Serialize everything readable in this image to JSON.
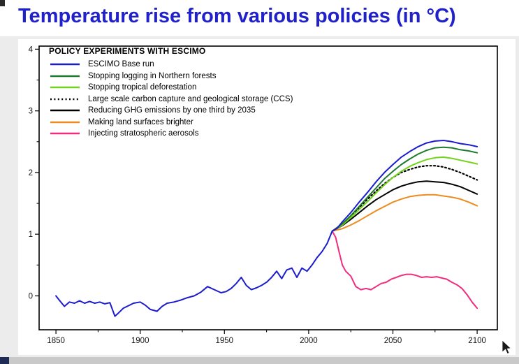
{
  "page": {
    "title": "Temperature rise from various policies (in °C)",
    "title_color": "#2121cc"
  },
  "chart_data": {
    "type": "line",
    "legend_title": "POLICY EXPERIMENTS WITH ESCIMO",
    "xlabel": "",
    "ylabel": "",
    "xlim": [
      1840,
      2112
    ],
    "ylim": [
      -0.55,
      4.05
    ],
    "xticks": [
      1850,
      1900,
      1950,
      2000,
      2050,
      2100
    ],
    "xminor": [
      1875,
      1925,
      1975,
      2025,
      2075
    ],
    "yticks": [
      0,
      1,
      2,
      3,
      4
    ],
    "yminor": [
      0.5,
      1.5,
      2.5,
      3.5
    ],
    "grid": false,
    "legend_position": "top-left-inside",
    "series": [
      {
        "name": "ESCIMO Base run",
        "color": "#1c1ccf",
        "dash": false,
        "width": 2,
        "x": [
          1850,
          1852,
          1855,
          1858,
          1861,
          1864,
          1867,
          1870,
          1873,
          1876,
          1879,
          1882,
          1885,
          1887,
          1890,
          1893,
          1896,
          1900,
          1903,
          1906,
          1910,
          1913,
          1916,
          1920,
          1924,
          1928,
          1932,
          1936,
          1940,
          1944,
          1948,
          1951,
          1954,
          1957,
          1960,
          1963,
          1966,
          1969,
          1972,
          1975,
          1978,
          1981,
          1984,
          1987,
          1990,
          1993,
          1996,
          1999,
          2002,
          2005,
          2008,
          2011,
          2014,
          2017,
          2020,
          2025,
          2030,
          2035,
          2040,
          2045,
          2050,
          2055,
          2060,
          2065,
          2070,
          2075,
          2080,
          2085,
          2090,
          2095,
          2100
        ],
        "y": [
          0.0,
          -0.07,
          -0.17,
          -0.1,
          -0.12,
          -0.08,
          -0.12,
          -0.09,
          -0.12,
          -0.1,
          -0.13,
          -0.11,
          -0.33,
          -0.28,
          -0.2,
          -0.16,
          -0.12,
          -0.1,
          -0.15,
          -0.22,
          -0.25,
          -0.17,
          -0.12,
          -0.1,
          -0.07,
          -0.03,
          0.0,
          0.06,
          0.15,
          0.1,
          0.05,
          0.07,
          0.12,
          0.2,
          0.3,
          0.17,
          0.1,
          0.13,
          0.17,
          0.22,
          0.3,
          0.4,
          0.28,
          0.42,
          0.45,
          0.3,
          0.45,
          0.4,
          0.5,
          0.62,
          0.72,
          0.85,
          1.05,
          1.1,
          1.2,
          1.35,
          1.52,
          1.68,
          1.85,
          2.0,
          2.13,
          2.25,
          2.34,
          2.42,
          2.48,
          2.51,
          2.52,
          2.5,
          2.47,
          2.45,
          2.42
        ]
      },
      {
        "name": "Stopping logging in Northern forests",
        "color": "#1e7a2e",
        "dash": false,
        "width": 2,
        "x": [
          2014,
          2020,
          2025,
          2030,
          2035,
          2040,
          2045,
          2050,
          2055,
          2060,
          2065,
          2070,
          2075,
          2080,
          2085,
          2090,
          2095,
          2100
        ],
        "y": [
          1.05,
          1.17,
          1.3,
          1.45,
          1.6,
          1.75,
          1.9,
          2.02,
          2.13,
          2.22,
          2.3,
          2.36,
          2.4,
          2.41,
          2.4,
          2.37,
          2.35,
          2.32
        ]
      },
      {
        "name": "Stopping tropical deforestation",
        "color": "#74d41c",
        "dash": false,
        "width": 2,
        "x": [
          2014,
          2020,
          2025,
          2030,
          2035,
          2040,
          2045,
          2050,
          2055,
          2060,
          2065,
          2070,
          2075,
          2080,
          2085,
          2090,
          2095,
          2100
        ],
        "y": [
          1.05,
          1.15,
          1.27,
          1.4,
          1.53,
          1.67,
          1.8,
          1.92,
          2.02,
          2.1,
          2.16,
          2.21,
          2.24,
          2.25,
          2.23,
          2.2,
          2.17,
          2.14
        ]
      },
      {
        "name": "Large scale carbon capture and geological storage (CCS)",
        "color": "#000000",
        "dash": true,
        "width": 2.2,
        "x": [
          2014,
          2020,
          2025,
          2030,
          2035,
          2040,
          2045,
          2050,
          2055,
          2060,
          2065,
          2070,
          2075,
          2080,
          2085,
          2090,
          2095,
          2100
        ],
        "y": [
          1.05,
          1.16,
          1.29,
          1.43,
          1.57,
          1.7,
          1.82,
          1.92,
          2.0,
          2.05,
          2.09,
          2.11,
          2.11,
          2.09,
          2.05,
          2.0,
          1.94,
          1.88
        ]
      },
      {
        "name": "Reducing GHG emissions by one third by 2035",
        "color": "#000000",
        "dash": false,
        "width": 2,
        "x": [
          2014,
          2020,
          2025,
          2030,
          2035,
          2040,
          2045,
          2050,
          2055,
          2060,
          2065,
          2070,
          2075,
          2080,
          2085,
          2090,
          2095,
          2100
        ],
        "y": [
          1.05,
          1.14,
          1.24,
          1.35,
          1.46,
          1.56,
          1.64,
          1.72,
          1.78,
          1.82,
          1.85,
          1.86,
          1.85,
          1.84,
          1.81,
          1.77,
          1.71,
          1.65
        ]
      },
      {
        "name": "Making land surfaces brighter",
        "color": "#ec8b1f",
        "dash": false,
        "width": 2,
        "x": [
          2014,
          2020,
          2025,
          2030,
          2035,
          2040,
          2045,
          2050,
          2055,
          2060,
          2065,
          2070,
          2075,
          2080,
          2085,
          2090,
          2095,
          2100
        ],
        "y": [
          1.05,
          1.09,
          1.15,
          1.22,
          1.3,
          1.38,
          1.45,
          1.52,
          1.57,
          1.61,
          1.63,
          1.64,
          1.64,
          1.62,
          1.6,
          1.57,
          1.52,
          1.46
        ]
      },
      {
        "name": "Injecting stratospheric aerosols",
        "color": "#f02d7d",
        "dash": false,
        "width": 2,
        "x": [
          2014,
          2016,
          2018,
          2020,
          2022,
          2025,
          2028,
          2031,
          2034,
          2037,
          2040,
          2043,
          2046,
          2049,
          2052,
          2055,
          2058,
          2061,
          2064,
          2067,
          2070,
          2073,
          2076,
          2079,
          2082,
          2085,
          2088,
          2091,
          2094,
          2097,
          2100
        ],
        "y": [
          1.05,
          0.95,
          0.72,
          0.5,
          0.4,
          0.32,
          0.15,
          0.1,
          0.12,
          0.1,
          0.15,
          0.2,
          0.22,
          0.27,
          0.3,
          0.33,
          0.35,
          0.35,
          0.33,
          0.3,
          0.31,
          0.3,
          0.31,
          0.29,
          0.27,
          0.22,
          0.18,
          0.12,
          0.02,
          -0.1,
          -0.2
        ]
      }
    ]
  }
}
